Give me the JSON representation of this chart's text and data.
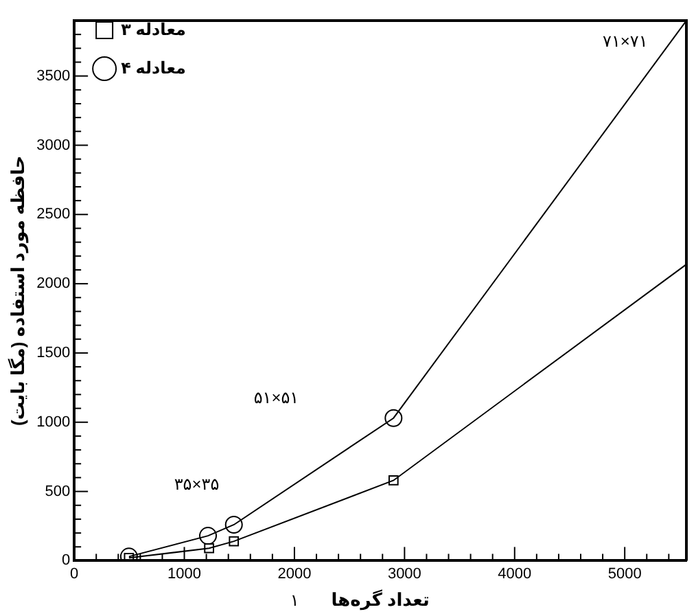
{
  "chart_data": {
    "type": "line",
    "xlabel": "تعداد گره‌ها",
    "ylabel": "حافظه مورد استفاده (مگا بایت)",
    "xlim": [
      0,
      5560
    ],
    "ylim": [
      0,
      3900
    ],
    "xticks": [
      0,
      {
        "value": 200,
        "label": null
      },
      {
        "value": 400,
        "label": null
      },
      {
        "value": 600,
        "label": null
      },
      {
        "value": 800,
        "label": null
      },
      1000,
      {
        "value": 1200,
        "label": null
      },
      {
        "value": 1400,
        "label": null
      },
      {
        "value": 1600,
        "label": null
      },
      {
        "value": 1800,
        "label": null
      },
      2000,
      {
        "value": 2200,
        "label": null
      },
      {
        "value": 2400,
        "label": null
      },
      {
        "value": 2600,
        "label": null
      },
      {
        "value": 2800,
        "label": null
      },
      3000,
      {
        "value": 3200,
        "label": null
      },
      {
        "value": 3400,
        "label": null
      },
      {
        "value": 3600,
        "label": null
      },
      {
        "value": 3800,
        "label": null
      },
      4000,
      {
        "value": 4200,
        "label": null
      },
      {
        "value": 4400,
        "label": null
      },
      {
        "value": 4600,
        "label": null
      },
      {
        "value": 4800,
        "label": null
      },
      5000,
      {
        "value": 5200,
        "label": null
      },
      {
        "value": 5400,
        "label": null
      }
    ],
    "yticks": [
      0,
      {
        "value": 100,
        "label": null
      },
      {
        "value": 200,
        "label": null
      },
      {
        "value": 300,
        "label": null
      },
      {
        "value": 400,
        "label": null
      },
      500,
      {
        "value": 600,
        "label": null
      },
      {
        "value": 700,
        "label": null
      },
      {
        "value": 800,
        "label": null
      },
      {
        "value": 900,
        "label": null
      },
      1000,
      {
        "value": 1100,
        "label": null
      },
      {
        "value": 1200,
        "label": null
      },
      {
        "value": 1300,
        "label": null
      },
      {
        "value": 1400,
        "label": null
      },
      1500,
      {
        "value": 1600,
        "label": null
      },
      {
        "value": 1700,
        "label": null
      },
      {
        "value": 1800,
        "label": null
      },
      {
        "value": 1900,
        "label": null
      },
      2000,
      {
        "value": 2100,
        "label": null
      },
      {
        "value": 2200,
        "label": null
      },
      {
        "value": 2300,
        "label": null
      },
      {
        "value": 2400,
        "label": null
      },
      2500,
      {
        "value": 2600,
        "label": null
      },
      {
        "value": 2700,
        "label": null
      },
      {
        "value": 2800,
        "label": null
      },
      {
        "value": 2900,
        "label": null
      },
      3000,
      {
        "value": 3100,
        "label": null
      },
      {
        "value": 3200,
        "label": null
      },
      {
        "value": 3300,
        "label": null
      },
      {
        "value": 3400,
        "label": null
      },
      3500,
      {
        "value": 3600,
        "label": null
      },
      {
        "value": 3700,
        "label": null
      },
      {
        "value": 3800,
        "label": null
      }
    ],
    "series": [
      {
        "name": "۳ معادله",
        "color": "#000000",
        "marker": "square",
        "x": [
          497,
          1225,
          1450,
          2900,
          5560
        ],
        "values": [
          20,
          90,
          140,
          580,
          2140
        ]
      },
      {
        "name": "۴ معادله",
        "color": "#000000",
        "marker": "circle",
        "x": [
          497,
          1215,
          1450,
          2900,
          5560
        ],
        "values": [
          30,
          180,
          260,
          1030,
          3900
        ]
      }
    ],
    "annotations": [
      "۷۱×۷۱",
      "۵۱×۵۱",
      "۳۵×۳۵",
      "۱"
    ],
    "legend": "top left",
    "grid": false,
    "line_style": "solid"
  }
}
